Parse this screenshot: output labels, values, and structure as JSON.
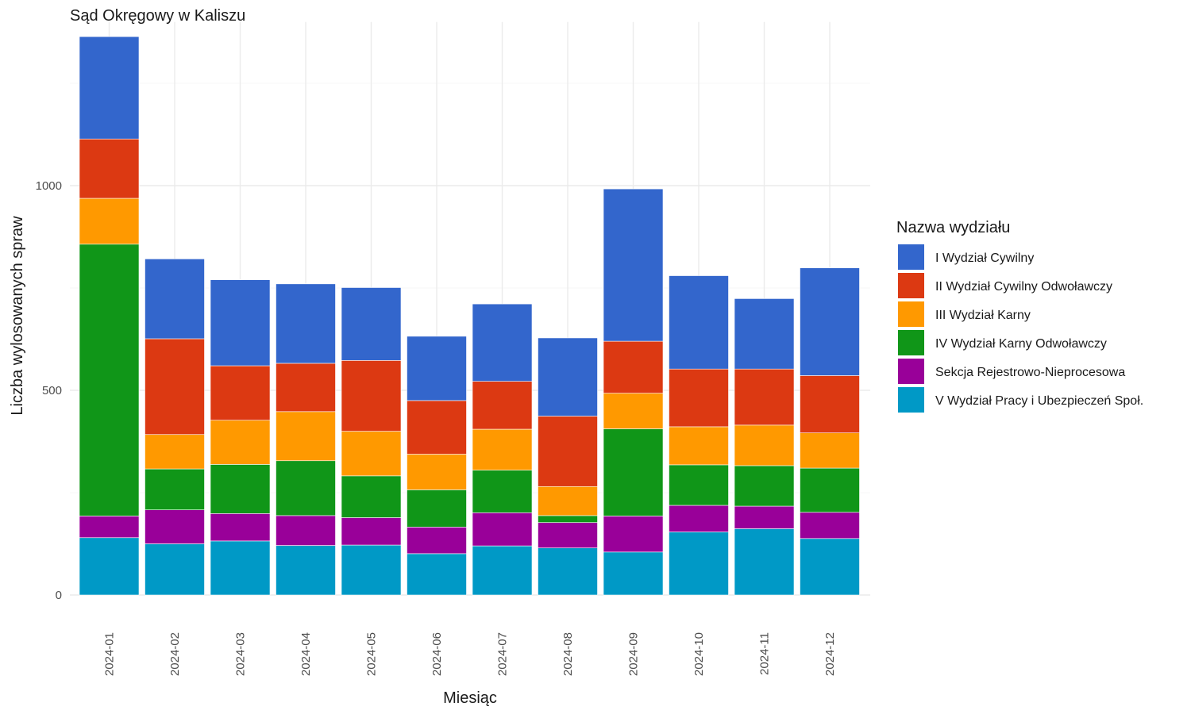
{
  "chart_data": {
    "type": "bar",
    "stacked": true,
    "title": "Sąd Okręgowy w Kaliszu",
    "xlabel": "Miesiąc",
    "ylabel": "Liczba wylosowanych spraw",
    "ylim": [
      0,
      1400
    ],
    "yticks": [
      0,
      500,
      1000
    ],
    "grid": true,
    "legend_position": "right",
    "legend_title": "Nazwa wydziału",
    "categories": [
      "2024-01",
      "2024-02",
      "2024-03",
      "2024-04",
      "2024-05",
      "2024-06",
      "2024-07",
      "2024-08",
      "2024-09",
      "2024-10",
      "2024-11",
      "2024-12"
    ],
    "series": [
      {
        "name": "V Wydział Pracy i Ubezpieczeń Społ.",
        "color": "#0099C6",
        "values": [
          140,
          125,
          132,
          121,
          122,
          101,
          120,
          115,
          105,
          154,
          162,
          138
        ]
      },
      {
        "name": "Sekcja Rejestrowo-Nieprocesowa",
        "color": "#990099",
        "values": [
          53,
          83,
          67,
          73,
          67,
          65,
          81,
          62,
          88,
          65,
          55,
          64
        ]
      },
      {
        "name": "IV Wydział Karny Odwoławczy",
        "color": "#109618",
        "values": [
          664,
          100,
          120,
          134,
          102,
          91,
          104,
          17,
          213,
          99,
          99,
          108
        ]
      },
      {
        "name": "III Wydział Karny",
        "color": "#FF9900",
        "values": [
          112,
          84,
          108,
          120,
          109,
          87,
          100,
          71,
          87,
          93,
          99,
          86
        ]
      },
      {
        "name": "II Wydział Cywilny Odwoławczy",
        "color": "#DC3912",
        "values": [
          145,
          234,
          133,
          118,
          173,
          131,
          117,
          172,
          127,
          141,
          137,
          140
        ]
      },
      {
        "name": "I Wydział Cywilny",
        "color": "#3366CC",
        "values": [
          250,
          195,
          210,
          194,
          178,
          157,
          189,
          191,
          372,
          228,
          172,
          263
        ]
      }
    ],
    "legend_order": [
      "I Wydział Cywilny",
      "II Wydział Cywilny Odwoławczy",
      "III Wydział Karny",
      "IV Wydział Karny Odwoławczy",
      "Sekcja Rejestrowo-Nieprocesowa",
      "V Wydział Pracy i Ubezpieczeń Społ."
    ]
  }
}
